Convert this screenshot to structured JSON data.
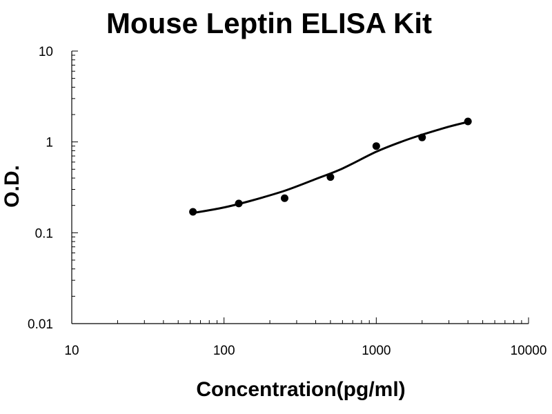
{
  "chart_data": {
    "type": "scatter",
    "title": "Mouse Leptin ELISA Kit",
    "xlabel": "Concentration(pg/ml)",
    "ylabel": "O.D.",
    "xscale": "log",
    "yscale": "log",
    "xlim": [
      10,
      10000
    ],
    "ylim": [
      0.01,
      10
    ],
    "x_ticks": [
      "10",
      "100",
      "1000",
      "10000"
    ],
    "y_ticks": [
      "0.01",
      "0.1",
      "1",
      "10"
    ],
    "grid": false,
    "legend": "none",
    "series": [
      {
        "points": [
          {
            "x": 62.5,
            "y": 0.17
          },
          {
            "x": 125,
            "y": 0.21
          },
          {
            "x": 250,
            "y": 0.24
          },
          {
            "x": 500,
            "y": 0.41
          },
          {
            "x": 1000,
            "y": 0.9
          },
          {
            "x": 2000,
            "y": 1.12
          },
          {
            "x": 4000,
            "y": 1.68
          }
        ]
      }
    ],
    "fit_curve": [
      {
        "x": 62.5,
        "y": 0.165
      },
      {
        "x": 100,
        "y": 0.19
      },
      {
        "x": 150,
        "y": 0.225
      },
      {
        "x": 250,
        "y": 0.29
      },
      {
        "x": 400,
        "y": 0.39
      },
      {
        "x": 600,
        "y": 0.51
      },
      {
        "x": 1000,
        "y": 0.78
      },
      {
        "x": 1500,
        "y": 1.02
      },
      {
        "x": 2000,
        "y": 1.2
      },
      {
        "x": 3000,
        "y": 1.47
      },
      {
        "x": 4000,
        "y": 1.66
      }
    ]
  }
}
